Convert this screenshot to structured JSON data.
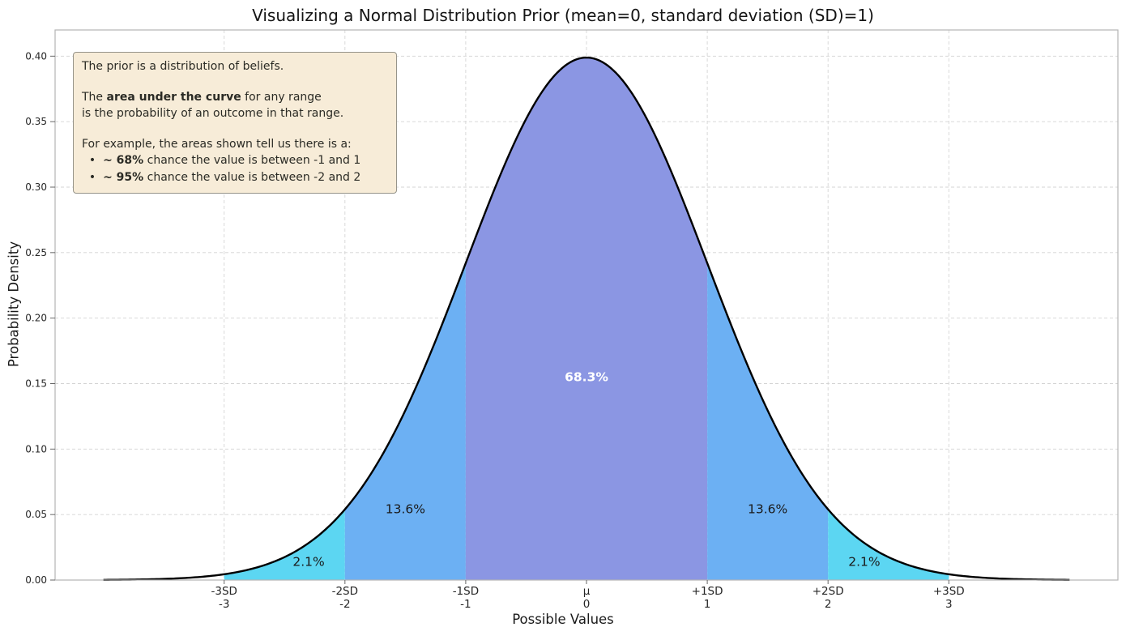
{
  "annotation": {
    "bg_color": "#f7ecd8",
    "border_color": "#96948a",
    "lines": [
      [
        {
          "t": "The prior is a distribution of beliefs."
        }
      ],
      [],
      [
        {
          "t": "The "
        },
        {
          "t": "area under the curve",
          "b": true
        },
        {
          "t": " for any range"
        }
      ],
      [
        {
          "t": "is the probability of an outcome in that range."
        }
      ],
      [],
      [
        {
          "t": "For example, the areas shown tell us there is a:"
        }
      ],
      [
        {
          "t": "  •  "
        },
        {
          "t": "~ 68%",
          "b": true
        },
        {
          "t": " chance the value is between -1 and 1"
        }
      ],
      [
        {
          "t": "  •  "
        },
        {
          "t": "~ 95%",
          "b": true
        },
        {
          "t": " chance the value is between -2 and 2"
        }
      ]
    ]
  },
  "chart_data": {
    "type": "area",
    "title": "Visualizing a Normal Distribution Prior (mean=0, standard deviation (SD)=1)",
    "xlabel": "Possible Values",
    "ylabel": "Probability Density",
    "distribution": {
      "name": "normal",
      "mean": 0,
      "sd": 1,
      "peak_density": 0.3989
    },
    "curve_range": [
      -4,
      4
    ],
    "curve_color": "#000000",
    "xlim": [
      -4.4,
      4.4
    ],
    "ylim": [
      0,
      0.42
    ],
    "grid": true,
    "grid_color": "#d4d4d4",
    "frame_color": "#b5b5b5",
    "yticks": [
      0.0,
      0.05,
      0.1,
      0.15,
      0.2,
      0.25,
      0.3,
      0.35,
      0.4
    ],
    "xticks": [
      {
        "x": -3,
        "sd_label": "-3SD",
        "value_label": "-3"
      },
      {
        "x": -2,
        "sd_label": "-2SD",
        "value_label": "-2"
      },
      {
        "x": -1,
        "sd_label": "-1SD",
        "value_label": "-1"
      },
      {
        "x": 0,
        "sd_label": "μ",
        "value_label": "0"
      },
      {
        "x": 1,
        "sd_label": "+1SD",
        "value_label": "1"
      },
      {
        "x": 2,
        "sd_label": "+2SD",
        "value_label": "2"
      },
      {
        "x": 3,
        "sd_label": "+3SD",
        "value_label": "3"
      }
    ],
    "regions": [
      {
        "from": -3,
        "to": -2,
        "probability_pct": 2.1,
        "color": "#5cd6f2",
        "label": "2.1%",
        "label_x": -2.3,
        "label_y": 0.014,
        "label_color": "#1a1a1a",
        "bold": false
      },
      {
        "from": -2,
        "to": -1,
        "probability_pct": 13.6,
        "color": "#6cb0f3",
        "label": "13.6%",
        "label_x": -1.5,
        "label_y": 0.054,
        "label_color": "#1a1a1a",
        "bold": false
      },
      {
        "from": -1,
        "to": 1,
        "probability_pct": 68.3,
        "color": "#8b96e3",
        "label": "68.3%",
        "label_x": 0,
        "label_y": 0.155,
        "label_color": "#ffffff",
        "bold": true
      },
      {
        "from": 1,
        "to": 2,
        "probability_pct": 13.6,
        "color": "#6cb0f3",
        "label": "13.6%",
        "label_x": 1.5,
        "label_y": 0.054,
        "label_color": "#1a1a1a",
        "bold": false
      },
      {
        "from": 2,
        "to": 3,
        "probability_pct": 2.1,
        "color": "#5cd6f2",
        "label": "2.1%",
        "label_x": 2.3,
        "label_y": 0.014,
        "label_color": "#1a1a1a",
        "bold": false
      }
    ]
  }
}
